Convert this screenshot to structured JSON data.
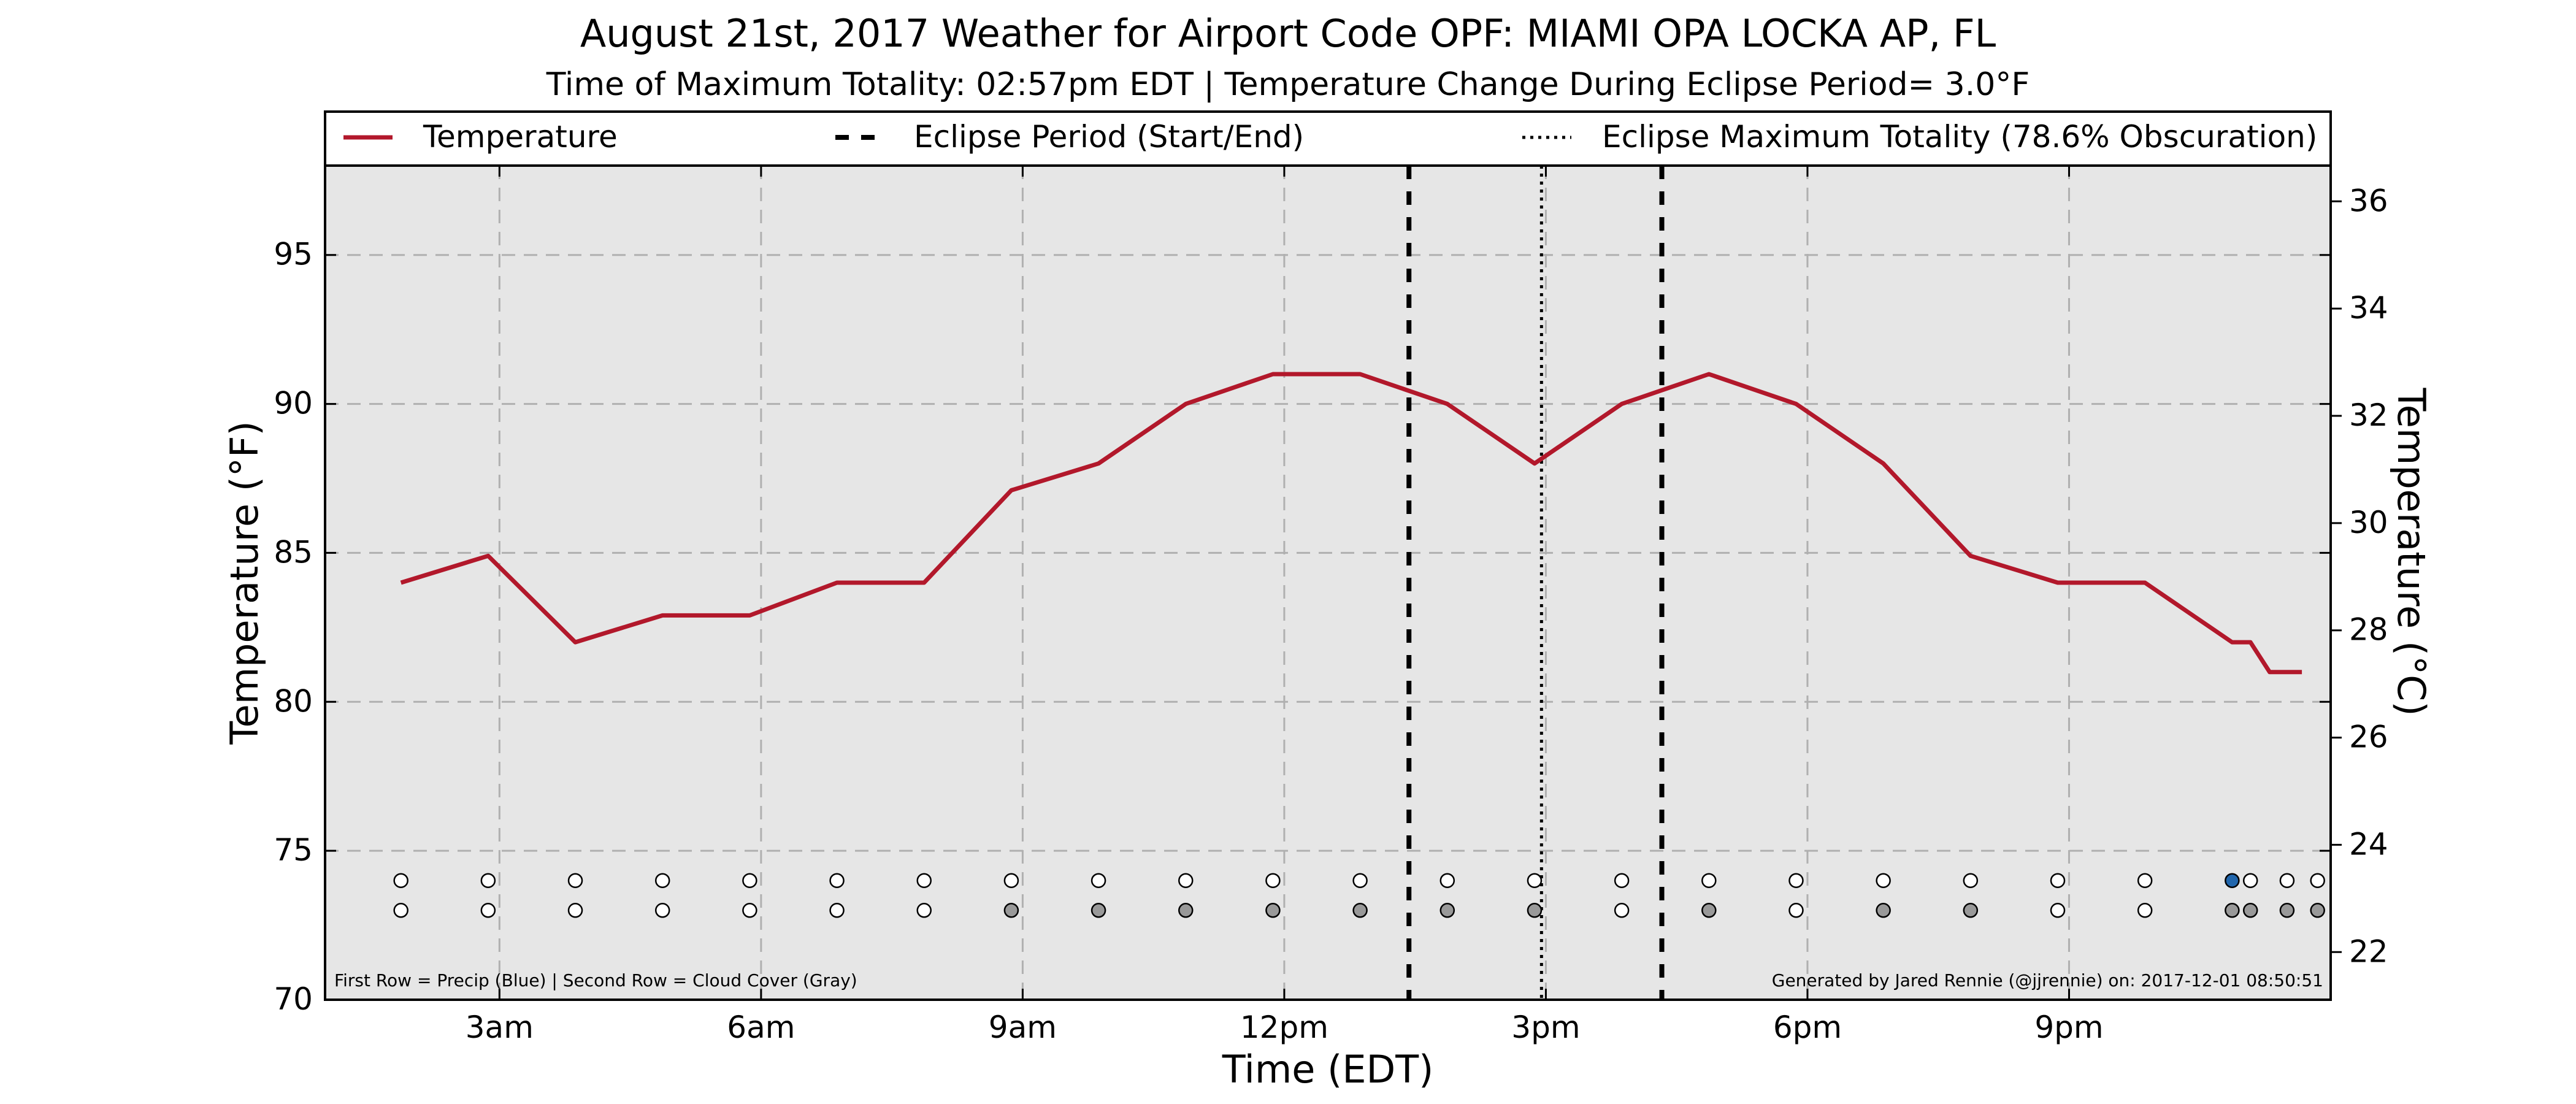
{
  "title": "August 21st, 2017 Weather for Airport Code OPF: MIAMI OPA LOCKA AP, FL",
  "subtitle": "Time of Maximum Totality: 02:57pm EDT | Temperature Change During Eclipse Period= 3.0°F",
  "footnote_left": "First Row = Precip (Blue) | Second Row = Cloud Cover (Gray)",
  "footnote_right": "Generated by Jared Rennie (@jjrennie) on: 2017-12-01 08:50:51",
  "colors": {
    "temperature": "#b2182b",
    "plot_bg": "#e6e6e6",
    "grid": "#b0b0b0",
    "precip": "#2166ac",
    "cloud": "#999999",
    "empty": "#ffffff"
  },
  "chart_data": {
    "type": "line",
    "xlabel": "Time (EDT)",
    "ylabel": "Temperature (°F)",
    "ylabel_right": "Temperature (°C)",
    "xlim": [
      1.0,
      24.0
    ],
    "ylim": [
      70,
      98
    ],
    "ylim_right_c": [
      21.11,
      36.67
    ],
    "x_ticks": [
      {
        "x": 3,
        "label": "3am"
      },
      {
        "x": 6,
        "label": "6am"
      },
      {
        "x": 9,
        "label": "9am"
      },
      {
        "x": 12,
        "label": "12pm"
      },
      {
        "x": 15,
        "label": "3pm"
      },
      {
        "x": 18,
        "label": "6pm"
      },
      {
        "x": 21,
        "label": "9pm"
      }
    ],
    "y_ticks": [
      70,
      75,
      80,
      85,
      90,
      95
    ],
    "y_ticks_right": [
      22,
      24,
      26,
      28,
      30,
      32,
      34,
      36
    ],
    "grid": true,
    "legend": {
      "placement": "top",
      "entries": [
        {
          "label": "Temperature",
          "style": "solid"
        },
        {
          "label": "Eclipse Period (Start/End)",
          "style": "dashed"
        },
        {
          "label": "Eclipse Maximum Totality (78.6% Obscuration)",
          "style": "dotted"
        }
      ]
    },
    "series": [
      {
        "name": "Temperature",
        "x": [
          1.87,
          2.87,
          3.87,
          4.87,
          5.87,
          6.87,
          7.87,
          8.87,
          9.87,
          10.87,
          11.87,
          12.87,
          13.87,
          14.87,
          15.87,
          16.87,
          17.87,
          18.87,
          19.87,
          20.87,
          21.87,
          22.87,
          23.08,
          23.3,
          23.67
        ],
        "values": [
          84,
          84.9,
          82,
          82.9,
          82.9,
          84,
          84,
          87.1,
          88,
          90,
          91,
          91,
          90,
          88,
          90,
          91,
          90,
          88,
          84.9,
          84,
          84,
          82,
          82,
          81,
          81
        ]
      }
    ],
    "eclipse_start": 13.43,
    "eclipse_max": 14.95,
    "eclipse_end": 16.33,
    "observation_rows": {
      "x": [
        1.87,
        2.87,
        3.87,
        4.87,
        5.87,
        6.87,
        7.87,
        8.87,
        9.87,
        10.87,
        11.87,
        12.87,
        13.87,
        14.87,
        15.87,
        16.87,
        17.87,
        18.87,
        19.87,
        20.87,
        21.87,
        22.87,
        23.08,
        23.5,
        23.85
      ],
      "precip": [
        0,
        0,
        0,
        0,
        0,
        0,
        0,
        0,
        0,
        0,
        0,
        0,
        0,
        0,
        0,
        0,
        0,
        0,
        0,
        0,
        0,
        1,
        0,
        0,
        0
      ],
      "cloud": [
        0,
        0,
        0,
        0,
        0,
        0,
        0,
        1,
        1,
        1,
        1,
        1,
        1,
        1,
        0,
        1,
        0,
        1,
        1,
        0,
        0,
        1,
        1,
        1,
        1
      ],
      "precip_y": 74,
      "cloud_y": 73
    }
  }
}
